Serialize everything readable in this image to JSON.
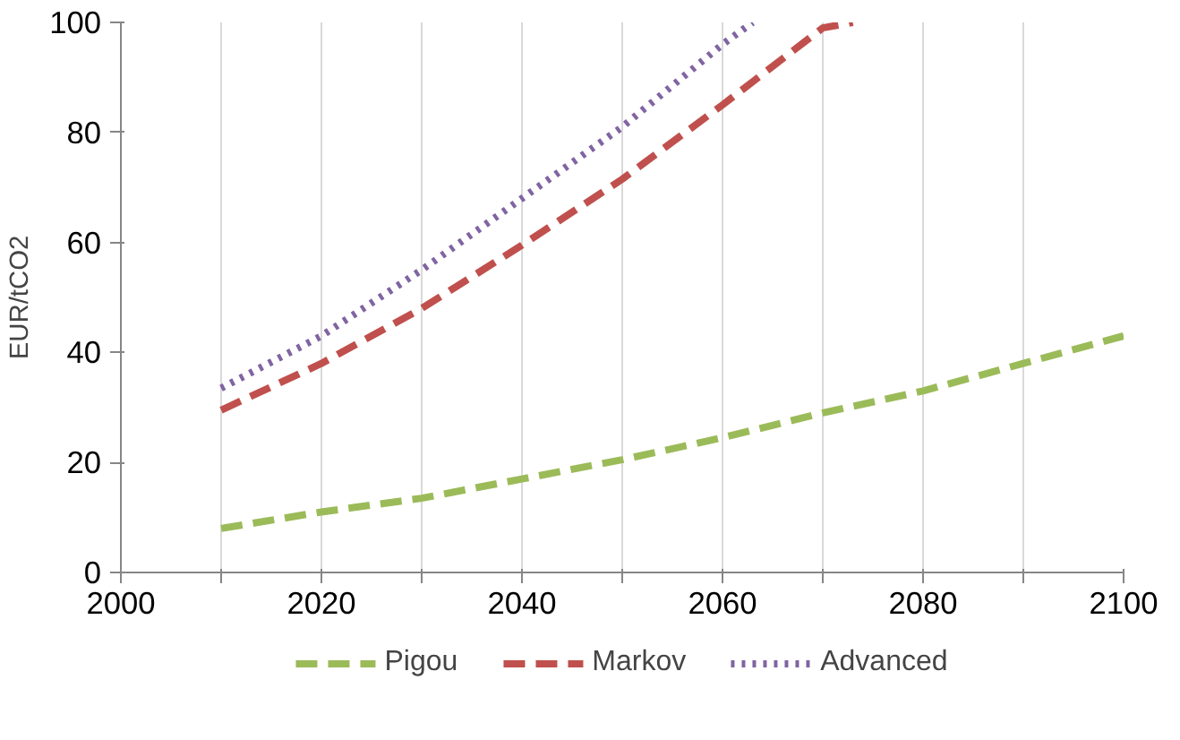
{
  "chart_data": {
    "type": "line",
    "ylabel": "EUR/tCO2",
    "xlim": [
      2000,
      2100
    ],
    "ylim": [
      0,
      100
    ],
    "xticks": [
      2000,
      {
        "value": 2010,
        "label": null
      },
      2020,
      {
        "value": 2030,
        "label": null
      },
      2040,
      {
        "value": 2050,
        "label": null
      },
      2060,
      {
        "value": 2070,
        "label": null
      },
      2080,
      {
        "value": 2090,
        "label": null
      },
      2100
    ],
    "yticks": [
      0,
      20,
      40,
      60,
      80,
      100
    ],
    "grid": "x",
    "legend": "bottom",
    "marker": "none",
    "series": [
      {
        "name": "Pigou",
        "color": "#9bbb59",
        "line_style": "dashed",
        "x": [
          2010,
          2020,
          2030,
          2040,
          2050,
          2060,
          2070,
          2080,
          2090,
          2100
        ],
        "values": [
          8,
          11,
          13.5,
          17,
          20.5,
          24.5,
          29,
          33,
          38,
          43
        ]
      },
      {
        "name": "Markov",
        "color": "#c0504d",
        "line_style": "dashed",
        "x": [
          2010,
          2020,
          2030,
          2040,
          2050,
          2060,
          2070,
          2073
        ],
        "values": [
          29.5,
          38,
          48,
          59.5,
          71.5,
          85,
          99,
          100
        ]
      },
      {
        "name": "Advanced",
        "color": "#8064a2",
        "line_style": "dotted",
        "x": [
          2010,
          2020,
          2030,
          2040,
          2050,
          2060,
          2063
        ],
        "values": [
          33.5,
          43,
          55,
          68,
          81,
          96,
          100
        ]
      }
    ]
  }
}
